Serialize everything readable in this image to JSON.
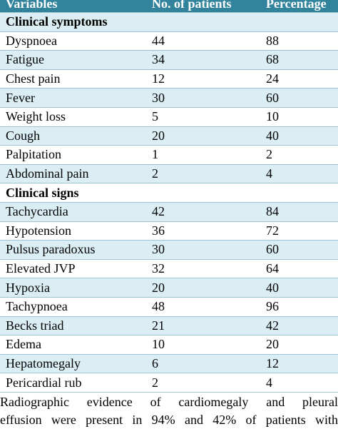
{
  "table": {
    "header": [
      "Variables",
      "No. of patients",
      "Percentage"
    ],
    "sections": [
      {
        "title": "Clinical symptoms",
        "rows": [
          [
            "Dyspnoea",
            44,
            88
          ],
          [
            "Fatigue",
            34,
            68
          ],
          [
            "Chest pain",
            12,
            24
          ],
          [
            "Fever",
            30,
            60
          ],
          [
            "Weight loss",
            5,
            10
          ],
          [
            "Cough",
            20,
            40
          ],
          [
            "Palpitation",
            1,
            2
          ],
          [
            "Abdominal pain",
            2,
            4
          ]
        ]
      },
      {
        "title": "Clinical signs",
        "rows": [
          [
            "Tachycardia",
            42,
            84
          ],
          [
            "Hypotension",
            36,
            72
          ],
          [
            "Pulsus paradoxus",
            30,
            60
          ],
          [
            "Elevated JVP",
            32,
            64
          ],
          [
            "Hypoxia",
            20,
            40
          ],
          [
            "Tachypnoea",
            48,
            96
          ],
          [
            "Becks triad",
            21,
            42
          ],
          [
            "Edema",
            10,
            20
          ],
          [
            "Hepatomegaly",
            6,
            12
          ],
          [
            "Pericardial rub",
            2,
            4
          ]
        ]
      }
    ]
  },
  "paragraph": [
    "Radiographic evidence of cardiomegaly and pleural",
    "effusion were present in 94% and 42% of patients with"
  ]
}
